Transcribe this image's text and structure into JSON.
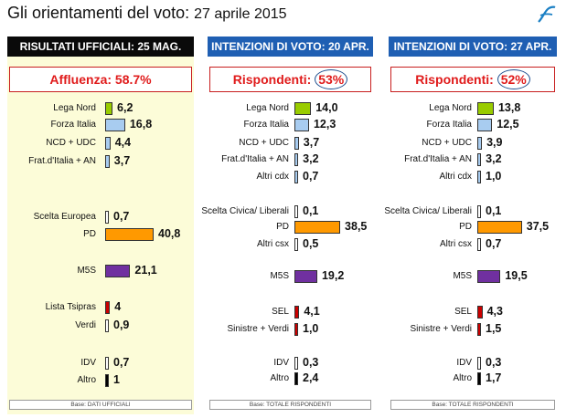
{
  "title": {
    "main": "Gli orientamenti del voto:",
    "date": "27 aprile 2015"
  },
  "colors": {
    "Lega Nord": "#99cc00",
    "Forza Italia": "#a8ccf0",
    "NCD + UDC": "#a8ccf0",
    "Frat.d'Italia + AN": "#a8ccf0",
    "Altri cdx": "#a8ccf0",
    "Scelta Europea": "#ffffff",
    "Scelta Civica/ Liberali": "#ffffff",
    "PD": "#ff9900",
    "Altri csx": "#ffffff",
    "M5S": "#7030a0",
    "Lista Tsipras": "#cc0000",
    "Verdi": "#ffffff",
    "SEL": "#cc0000",
    "Sinistre + Verdi": "#cc0000",
    "IDV": "#ffffff",
    "Altro": "#000000"
  },
  "chart_data": [
    {
      "type": "bar",
      "title": "RISULTATI UFFICIALI:  25 MAG.",
      "stat_label": "Affluenza:",
      "stat_value": "58.7%",
      "footer": "Base: DATI UFFICIALI",
      "categories": [
        "Lega Nord",
        "Forza Italia",
        "NCD + UDC",
        "Frat.d'Italia + AN",
        "Scelta Europea",
        "PD",
        "M5S",
        "Lista Tsipras",
        "Verdi",
        "IDV",
        "Altro"
      ],
      "values": [
        6.2,
        16.8,
        4.4,
        3.7,
        0.7,
        40.8,
        21.1,
        4,
        0.9,
        0.7,
        1
      ],
      "labels": [
        "6,2",
        "16,8",
        "4,4",
        "3,7",
        "0,7",
        "40,8",
        "21,1",
        "4",
        "0,9",
        "0,7",
        "1"
      ]
    },
    {
      "type": "bar",
      "title": "INTENZIONI DI VOTO:  20 APR.",
      "stat_label": "Rispondenti:",
      "stat_value": "53%",
      "footer": "Base: TOTALE RISPONDENTI",
      "categories": [
        "Lega Nord",
        "Forza Italia",
        "NCD + UDC",
        "Frat.d'Italia + AN",
        "Altri cdx",
        "Scelta Civica/ Liberali",
        "PD",
        "Altri csx",
        "M5S",
        "SEL",
        "Sinistre + Verdi",
        "IDV",
        "Altro"
      ],
      "values": [
        14.0,
        12.3,
        3.7,
        3.2,
        0.7,
        0.1,
        38.5,
        0.5,
        19.2,
        4.1,
        1.0,
        0.3,
        2.4
      ],
      "labels": [
        "14,0",
        "12,3",
        "3,7",
        "3,2",
        "0,7",
        "0,1",
        "38,5",
        "0,5",
        "19,2",
        "4,1",
        "1,0",
        "0,3",
        "2,4"
      ]
    },
    {
      "type": "bar",
      "title": "INTENZIONI DI VOTO:  27 APR.",
      "stat_label": "Rispondenti:",
      "stat_value": "52%",
      "footer": "Base: TOTALE RISPONDENTI",
      "categories": [
        "Lega Nord",
        "Forza Italia",
        "NCD + UDC",
        "Frat.d'Italia + AN",
        "Altri cdx",
        "Scelta Civica/ Liberali",
        "PD",
        "Altri csx",
        "M5S",
        "SEL",
        "Sinistre + Verdi",
        "IDV",
        "Altro"
      ],
      "values": [
        13.8,
        12.5,
        3.9,
        3.2,
        1.0,
        0.1,
        37.5,
        0.7,
        19.5,
        4.3,
        1.5,
        0.3,
        1.7
      ],
      "labels": [
        "13,8",
        "12,5",
        "3,9",
        "3,2",
        "1,0",
        "0,1",
        "37,5",
        "0,7",
        "19,5",
        "4,3",
        "1,5",
        "0,3",
        "1,7"
      ]
    }
  ]
}
